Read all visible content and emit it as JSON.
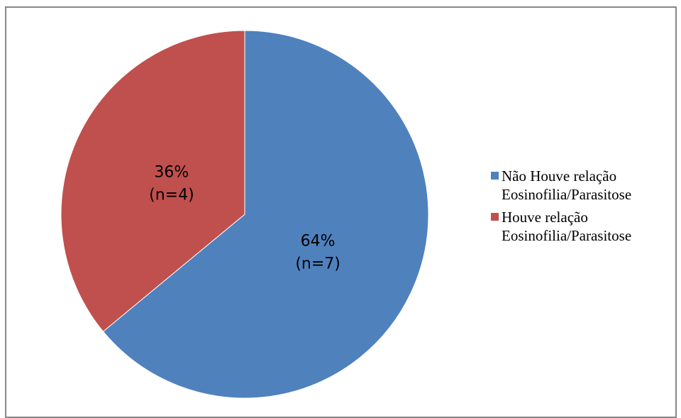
{
  "chart_data": {
    "type": "pie",
    "title": "",
    "start_angle_deg": 0,
    "direction": "clockwise",
    "legend_position": "right",
    "slices": [
      {
        "name": "Não Houve relação Eosinofilia/Parasitose",
        "legend_lines": [
          "Não Houve relação",
          "Eosinofilia/Parasitose"
        ],
        "value": 64,
        "percent_label": "64%",
        "count_label": "(n=7)",
        "color": "#4f81bd"
      },
      {
        "name": "Houve relação Eosinofilia/Parasitose",
        "legend_lines": [
          "Houve relação",
          "Eosinofilia/Parasitose"
        ],
        "value": 36,
        "percent_label": "36%",
        "count_label": "(n=4)",
        "color": "#c0504d"
      }
    ]
  }
}
